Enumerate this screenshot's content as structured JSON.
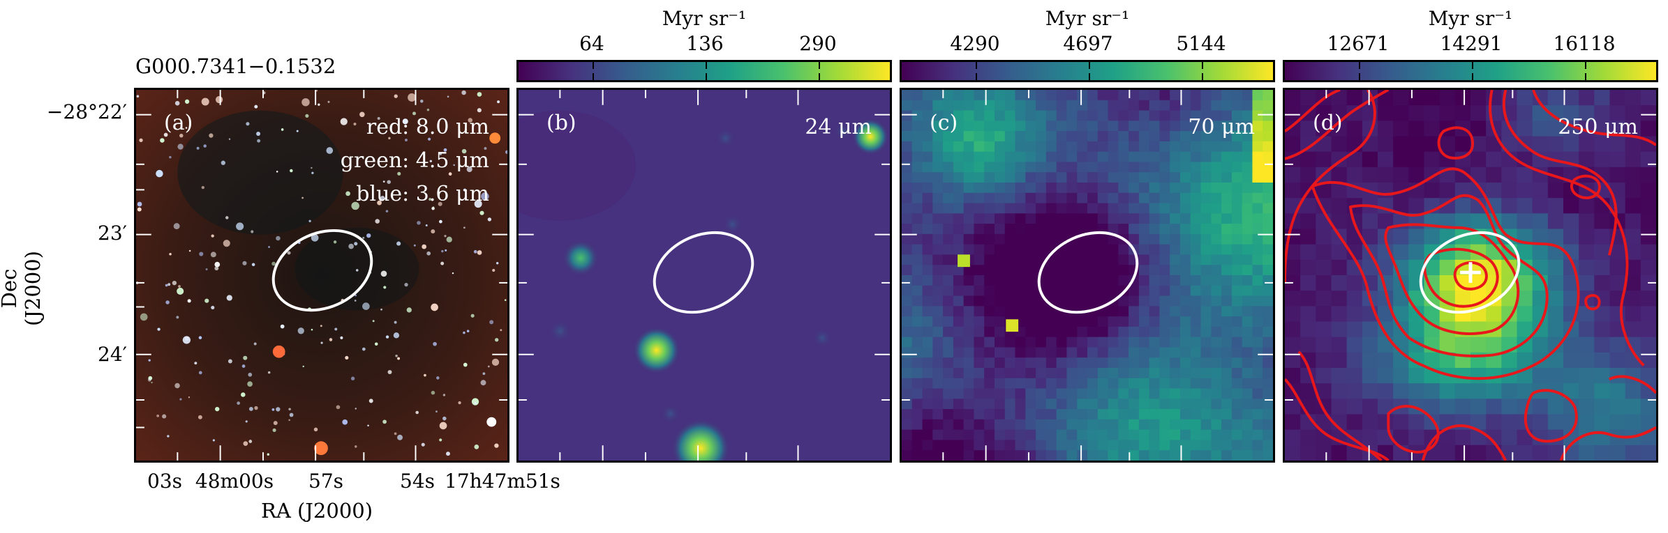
{
  "figure": {
    "source_name": "G000.7341−0.1532",
    "y_axis_title": "Dec (J2000)",
    "x_axis_title": "RA (J2000)",
    "y_ticks": [
      "−28°22′",
      "23′",
      "24′"
    ],
    "x_ticks": [
      "03s",
      "48m00s",
      "57s",
      "54s",
      "17h47m51s"
    ]
  },
  "panels": [
    {
      "id": "a",
      "label": "(a)",
      "bands": [
        "red: 8.0 μm",
        "green: 4.5 μm",
        "blue: 3.6 μm"
      ]
    },
    {
      "id": "b",
      "label": "(b)",
      "wavelength": "24 μm",
      "colorbar": {
        "title": "Myr sr⁻¹",
        "ticks": [
          "64",
          "136",
          "290"
        ]
      }
    },
    {
      "id": "c",
      "label": "(c)",
      "wavelength": "70 μm",
      "colorbar": {
        "title": "Myr sr⁻¹",
        "ticks": [
          "4290",
          "4697",
          "5144"
        ]
      }
    },
    {
      "id": "d",
      "label": "(d)",
      "wavelength": "250 μm",
      "colorbar": {
        "title": "Myr sr⁻¹",
        "ticks": [
          "12671",
          "14291",
          "16118"
        ]
      }
    }
  ],
  "colors": {
    "colormap_low": "#440154",
    "colormap_high": "#fde725",
    "ellipse": "#ffffff",
    "contours": "#e8171b",
    "marker": "#ffffff"
  },
  "icons": [
    "ellipse-aperture",
    "plus-marker"
  ]
}
